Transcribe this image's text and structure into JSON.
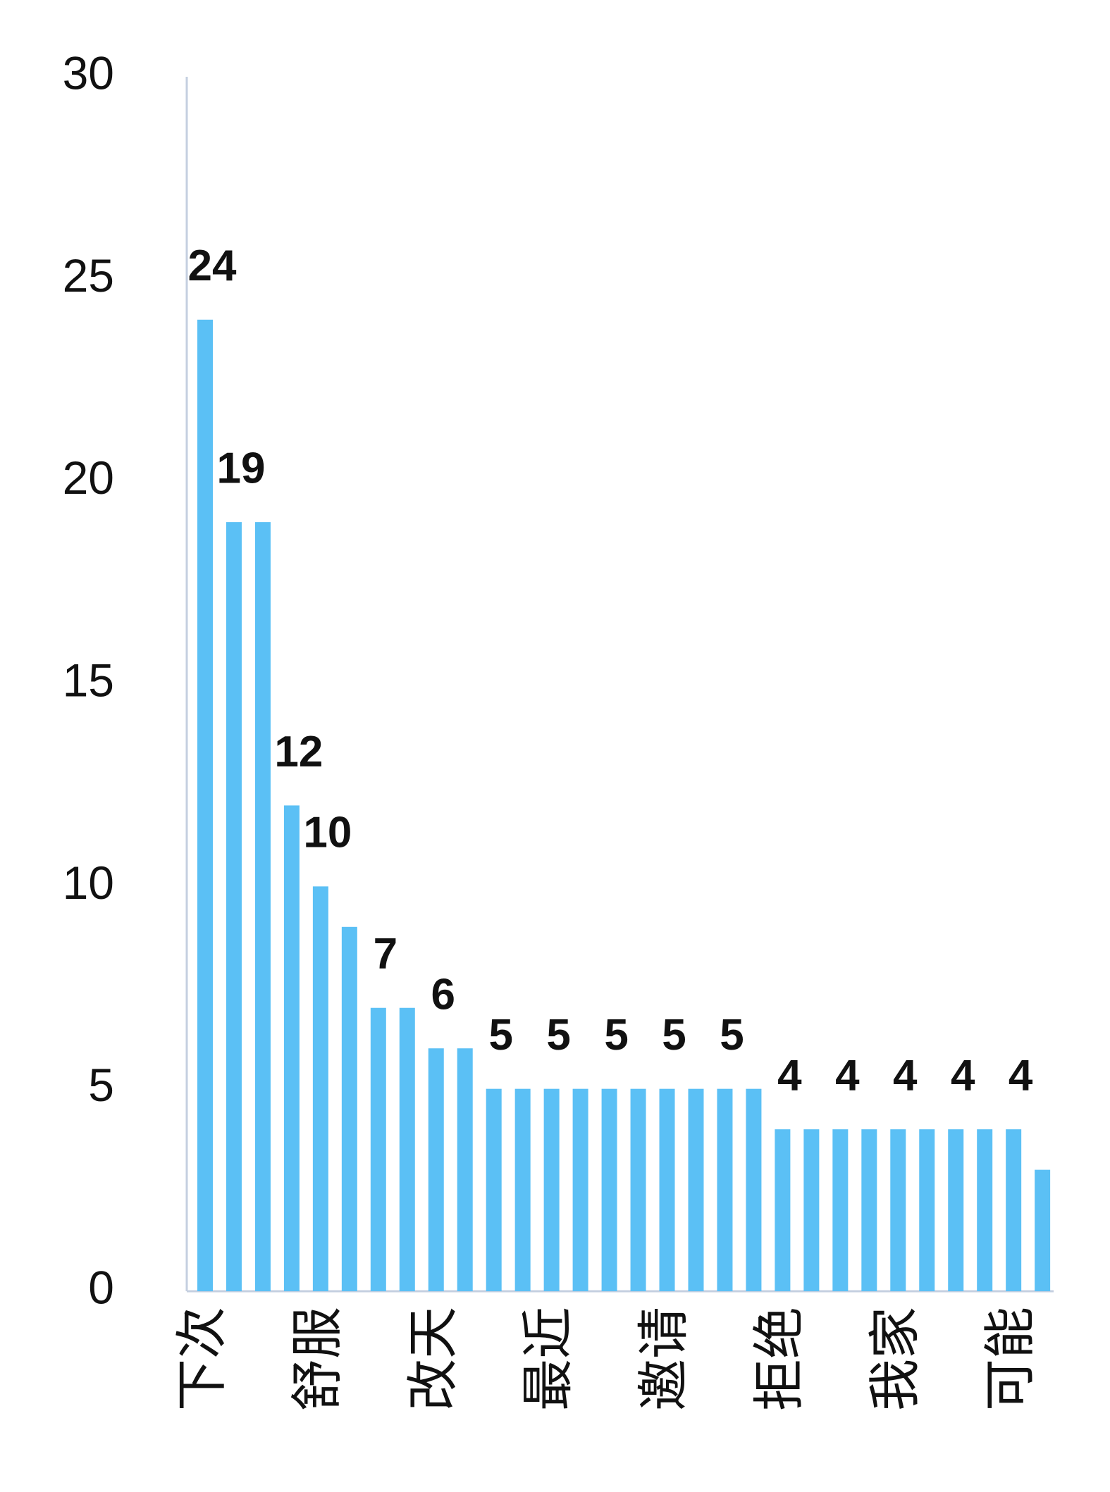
{
  "chart_data": {
    "type": "bar",
    "categories": [
      "下次",
      null,
      null,
      null,
      "舒服",
      null,
      null,
      null,
      "改天",
      null,
      null,
      null,
      "最近",
      null,
      null,
      null,
      "邀请",
      null,
      null,
      null,
      "拒绝",
      null,
      null,
      null,
      "我家",
      null,
      null,
      null,
      "可能",
      null
    ],
    "values": [
      24,
      19,
      19,
      12,
      10,
      9,
      7,
      7,
      6,
      6,
      5,
      5,
      5,
      5,
      5,
      5,
      5,
      5,
      5,
      5,
      4,
      4,
      4,
      4,
      4,
      4,
      4,
      4,
      4,
      3
    ],
    "value_labels": [
      "24",
      "19",
      null,
      "12",
      "10",
      null,
      "7",
      null,
      "6",
      null,
      "5",
      null,
      "5",
      null,
      "5",
      null,
      "5",
      null,
      "5",
      null,
      "4",
      null,
      "4",
      null,
      "4",
      null,
      "4",
      null,
      "4",
      null
    ],
    "color": "#5bc0f5",
    "ylim": [
      0,
      30
    ],
    "yticks": [
      0,
      5,
      10,
      15,
      20,
      25,
      30
    ],
    "grid": false
  }
}
